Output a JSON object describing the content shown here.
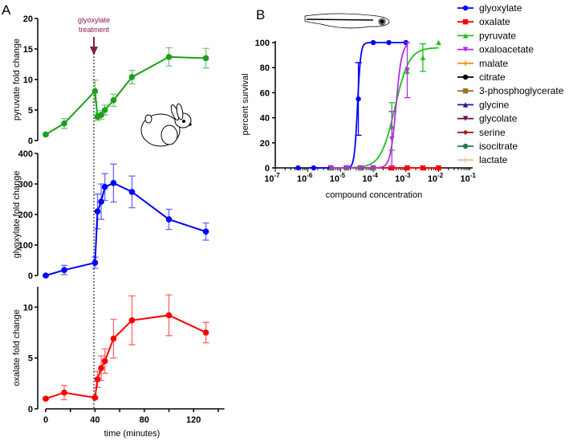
{
  "panel_labels": {
    "a": "A",
    "b": "B"
  },
  "annotation": {
    "line1": "glyoxylate",
    "line2": "treatment",
    "color": "#8b1a4a"
  },
  "chart_data": [
    {
      "type": "line",
      "panel": "A-top",
      "ylabel": "pyruvate fold change",
      "ylim": [
        0,
        20
      ],
      "yticks": [
        "0",
        "5",
        "10",
        "15",
        "20"
      ],
      "color": "#1aa01a",
      "x": [
        0,
        15,
        40,
        42,
        45,
        48,
        55,
        70,
        100,
        130
      ],
      "values": [
        1,
        2.8,
        8.1,
        3.9,
        4.2,
        5.0,
        6.6,
        10.4,
        13.7,
        13.5
      ],
      "errors": [
        0.2,
        0.8,
        1.8,
        0.6,
        0.7,
        0.8,
        1.0,
        1.1,
        1.5,
        1.6
      ]
    },
    {
      "type": "line",
      "panel": "A-middle",
      "ylabel": "glyoxylate fold change",
      "ylim": [
        0,
        400
      ],
      "yticks": [
        "0",
        "100",
        "200",
        "300",
        "400"
      ],
      "color": "#0000ff",
      "x": [
        0,
        15,
        40,
        42,
        45,
        48,
        55,
        70,
        100,
        130
      ],
      "values": [
        0,
        18,
        42,
        210,
        242,
        290,
        303,
        274,
        184,
        144
      ],
      "errors": [
        2,
        15,
        18,
        57,
        58,
        44,
        62,
        52,
        33,
        28
      ]
    },
    {
      "type": "line",
      "panel": "A-bottom",
      "ylabel": "oxalate fold change",
      "xlabel": "time (minutes)",
      "ylim": [
        0,
        12
      ],
      "yticks": [
        "0",
        "5",
        "10"
      ],
      "xticks": [
        "0",
        "40",
        "80",
        "120"
      ],
      "xlim": [
        0,
        145
      ],
      "color": "#ff0000",
      "x": [
        0,
        15,
        40,
        42,
        45,
        48,
        55,
        70,
        100,
        130
      ],
      "values": [
        1,
        1.6,
        1.1,
        2.9,
        4.0,
        4.7,
        6.9,
        8.7,
        9.2,
        7.5
      ],
      "errors": [
        0.1,
        0.7,
        0.1,
        0.8,
        1.2,
        1.2,
        1.9,
        2.4,
        2.0,
        1.0
      ]
    },
    {
      "type": "scatter",
      "panel": "B",
      "ylabel": "percent survival",
      "xlabel": "compound concentration",
      "xscale": "log",
      "xlim": [
        1e-07,
        0.1
      ],
      "ylim": [
        0,
        100
      ],
      "xticks": [
        "-7",
        "-6",
        "-5",
        "-4",
        "-3",
        "-2",
        "-1"
      ],
      "yticks": [
        "0",
        "20",
        "40",
        "60",
        "80",
        "100"
      ],
      "series": [
        {
          "name": "glyoxylate",
          "color": "#0000ff",
          "marker": "circle",
          "x": [
            5e-07,
            1.5e-06,
            5e-06,
            1.5e-05,
            3.5e-05,
            0.0001,
            0.0003,
            0.001
          ],
          "values": [
            0,
            0,
            0,
            0,
            55,
            100,
            100,
            100
          ],
          "errors": [
            0,
            0,
            0,
            0,
            29,
            0,
            0,
            0
          ],
          "fit": {
            "ec50": 3.3e-05,
            "hill": 9,
            "top": 100,
            "from": 1e-06,
            "to": 0.001
          }
        },
        {
          "name": "oxalate",
          "color": "#ff0000",
          "marker": "square",
          "x": [
            5e-06,
            1.5e-05,
            4e-05,
            0.0001,
            0.00037,
            0.0011,
            0.0033,
            0.01
          ],
          "values": [
            0,
            0,
            0,
            0,
            0,
            0,
            0,
            0
          ],
          "fit": {
            "ec50": 1,
            "hill": 1,
            "top": 0,
            "from": 5e-06,
            "to": 0.01
          }
        },
        {
          "name": "pyruvate",
          "color": "#1ec01e",
          "marker": "triangle",
          "x": [
            5e-06,
            1.5e-05,
            4e-05,
            0.0001,
            0.00037,
            0.0011,
            0.0033,
            0.01
          ],
          "values": [
            0,
            0,
            0,
            0,
            33,
            77,
            88,
            100
          ],
          "errors": [
            0,
            0,
            0,
            0,
            19,
            0,
            11,
            0
          ],
          "fit": {
            "ec50": 0.00046,
            "hill": 2,
            "top": 96,
            "from": 5e-06,
            "to": 0.01
          }
        },
        {
          "name": "oxaloacetate",
          "color": "#b030e0",
          "marker": "tri-down",
          "x": [
            5e-06,
            1.5e-05,
            4e-05,
            0.0001,
            0.00037,
            0.0011
          ],
          "values": [
            0,
            0,
            0,
            0,
            23,
            78
          ],
          "errors": [
            0,
            0,
            0,
            0,
            22,
            22
          ],
          "fit": {
            "ec50": 0.0005,
            "hill": 5,
            "top": 100,
            "from": 5e-06,
            "to": 0.0011
          }
        },
        {
          "name": "malate",
          "color": "#ff8c1a",
          "marker": "plus",
          "x": [],
          "values": []
        },
        {
          "name": "citrate",
          "color": "#000000",
          "marker": "circle",
          "x": [],
          "values": []
        },
        {
          "name": "3-phosphoglycerate",
          "color": "#a0702a",
          "marker": "square",
          "x": [],
          "values": []
        },
        {
          "name": "glycine",
          "color": "#1a1a8c",
          "marker": "triangle",
          "x": [],
          "values": []
        },
        {
          "name": "glycolate",
          "color": "#6a1050",
          "marker": "tri-down",
          "x": [],
          "values": []
        },
        {
          "name": "serine",
          "color": "#a01818",
          "marker": "diamond",
          "x": [],
          "values": []
        },
        {
          "name": "isocitrate",
          "color": "#1f7a50",
          "marker": "circle",
          "x": [],
          "values": []
        },
        {
          "name": "lactate",
          "color": "#f0c090",
          "marker": "star",
          "x": [],
          "values": []
        }
      ]
    }
  ]
}
